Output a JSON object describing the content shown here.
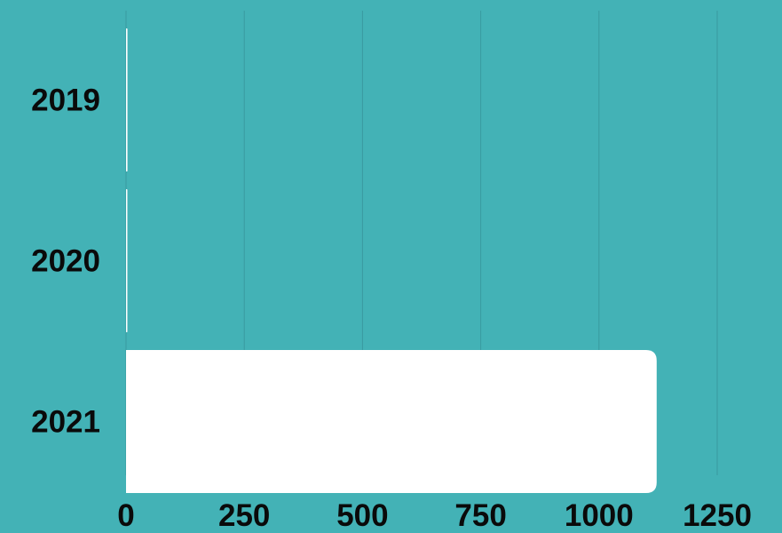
{
  "chart_data": {
    "type": "bar",
    "orientation": "horizontal",
    "categories": [
      "2019",
      "2020",
      "2021"
    ],
    "values": [
      3,
      2,
      1122
    ],
    "xlim": [
      0,
      1250
    ],
    "xticks": [
      "0",
      "250",
      "500",
      "750",
      "1000",
      "1250"
    ],
    "title": "",
    "xlabel": "",
    "ylabel": "",
    "grid": true,
    "colors": {
      "background": "#43b2b6",
      "bar": "#ffffff",
      "grid": "#3a9aa0",
      "text": "#0a0a0a"
    }
  }
}
